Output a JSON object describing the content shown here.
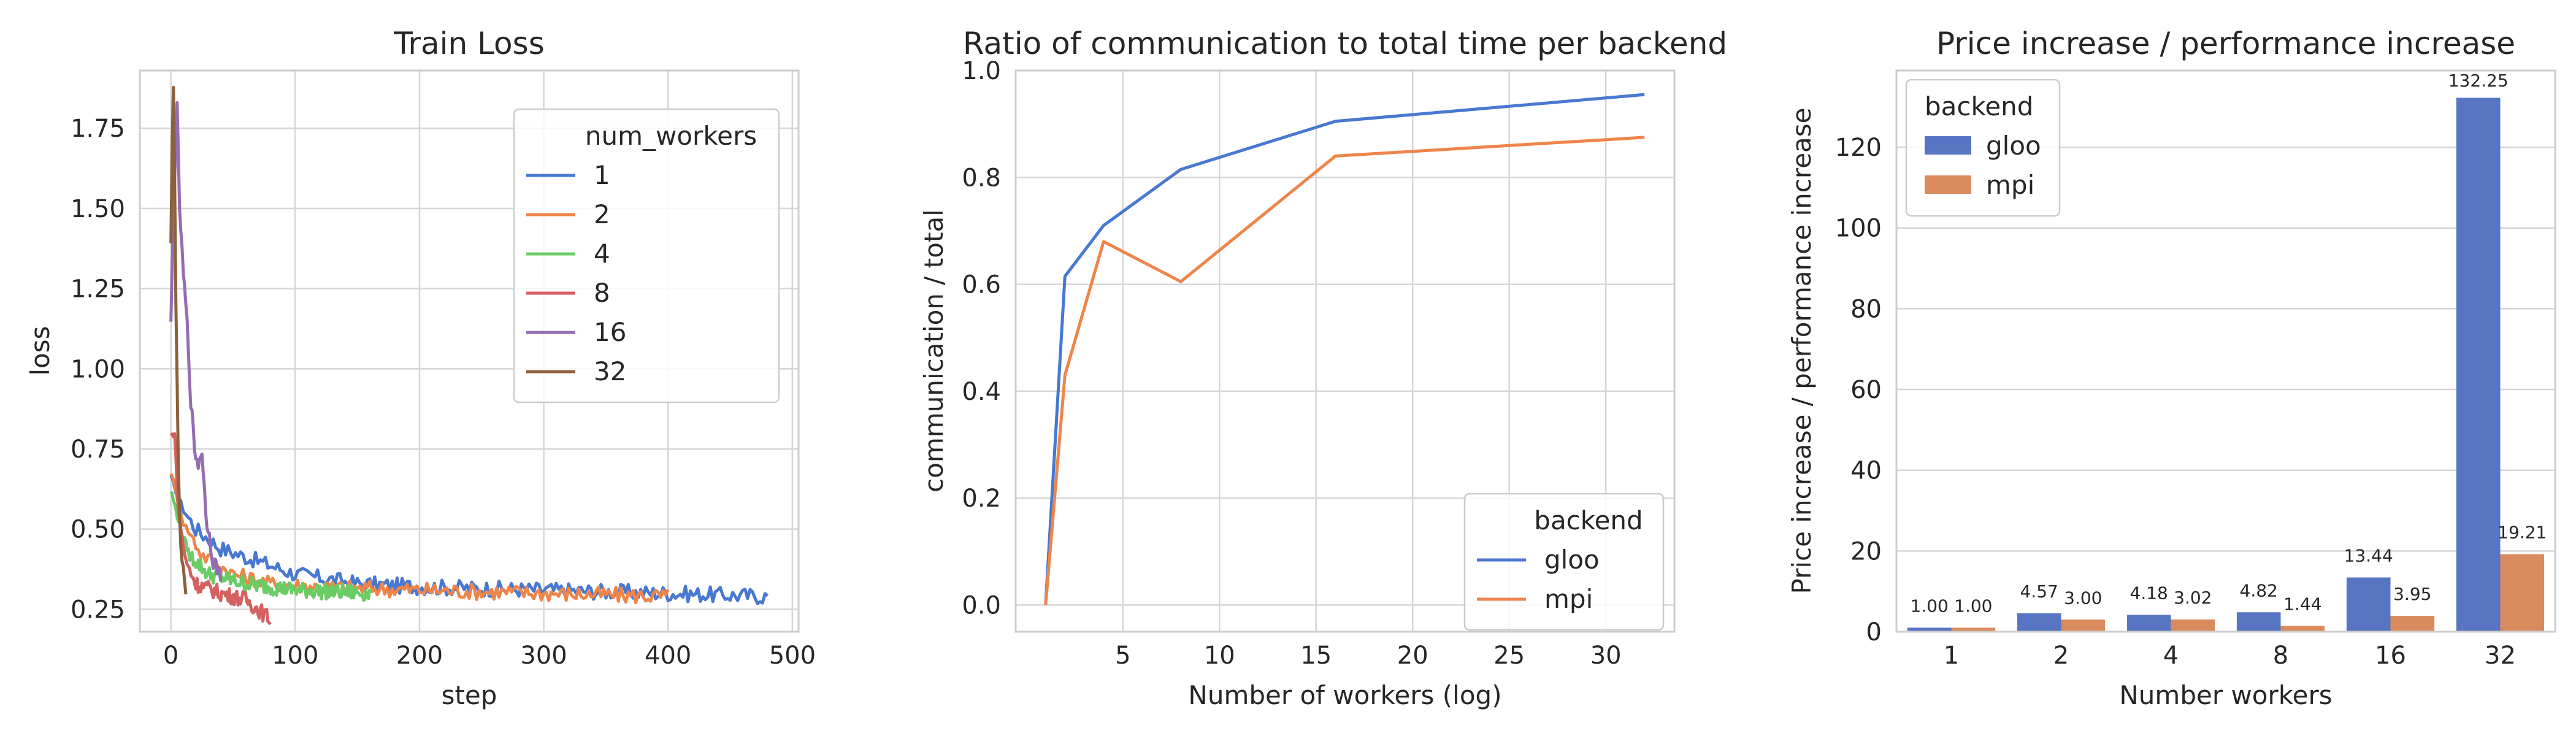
{
  "colors": {
    "blue": "#4c72b0",
    "blue_line": "#4878d0",
    "orange": "#ee854a",
    "orange_bar": "#dd8452",
    "green": "#6acc64",
    "red": "#d65f5f",
    "purple": "#956cb4",
    "brown": "#8c613c",
    "gloo_bar": "#5875c4",
    "mpi_bar": "#d98b5d"
  },
  "chart_data": [
    {
      "type": "line",
      "title": "Train Loss",
      "xlabel": "step",
      "ylabel": "loss",
      "xlim": [
        -25,
        505
      ],
      "ylim": [
        0.18,
        1.93
      ],
      "xticks": [
        0,
        100,
        200,
        300,
        400,
        500
      ],
      "yticks": [
        0.25,
        0.5,
        0.75,
        1.0,
        1.25,
        1.5,
        1.75
      ],
      "ytick_labels": [
        "0.25",
        "0.50",
        "0.75",
        "1.00",
        "1.25",
        "1.50",
        "1.75"
      ],
      "grid": true,
      "legend": {
        "title": "num_workers",
        "placement": "top-right"
      },
      "series": [
        {
          "name": "1",
          "color_key": "blue_line",
          "x": [
            0,
            480
          ],
          "anchors": [
            [
              0,
              0.66
            ],
            [
              10,
              0.56
            ],
            [
              20,
              0.5
            ],
            [
              40,
              0.44
            ],
            [
              70,
              0.4
            ],
            [
              100,
              0.36
            ],
            [
              150,
              0.33
            ],
            [
              200,
              0.32
            ],
            [
              300,
              0.31
            ],
            [
              400,
              0.3
            ],
            [
              480,
              0.29
            ]
          ]
        },
        {
          "name": "2",
          "color_key": "orange",
          "x": [
            0,
            400
          ],
          "anchors": [
            [
              0,
              0.68
            ],
            [
              10,
              0.52
            ],
            [
              25,
              0.42
            ],
            [
              50,
              0.36
            ],
            [
              80,
              0.33
            ],
            [
              120,
              0.32
            ],
            [
              200,
              0.31
            ],
            [
              300,
              0.3
            ],
            [
              400,
              0.29
            ]
          ]
        },
        {
          "name": "4",
          "color_key": "green",
          "x": [
            0,
            160
          ],
          "anchors": [
            [
              0,
              0.62
            ],
            [
              8,
              0.5
            ],
            [
              15,
              0.42
            ],
            [
              30,
              0.36
            ],
            [
              60,
              0.33
            ],
            [
              100,
              0.31
            ],
            [
              160,
              0.3
            ]
          ]
        },
        {
          "name": "8",
          "color_key": "red",
          "x": [
            0,
            80
          ],
          "anchors": [
            [
              0,
              0.79
            ],
            [
              3,
              0.8
            ],
            [
              6,
              0.55
            ],
            [
              12,
              0.4
            ],
            [
              20,
              0.33
            ],
            [
              40,
              0.3
            ],
            [
              60,
              0.28
            ],
            [
              80,
              0.22
            ]
          ]
        },
        {
          "name": "16",
          "color_key": "purple",
          "x": [
            0,
            40
          ],
          "anchors": [
            [
              0,
              1.14
            ],
            [
              1,
              1.33
            ],
            [
              3,
              1.6
            ],
            [
              5,
              1.82
            ],
            [
              7,
              1.5
            ],
            [
              10,
              1.3
            ],
            [
              13,
              1.15
            ],
            [
              16,
              0.9
            ],
            [
              19,
              0.75
            ],
            [
              22,
              0.7
            ],
            [
              25,
              0.75
            ],
            [
              28,
              0.55
            ],
            [
              31,
              0.48
            ],
            [
              34,
              0.4
            ],
            [
              37,
              0.38
            ],
            [
              40,
              0.35
            ]
          ]
        },
        {
          "name": "32",
          "color_key": "brown",
          "x": [
            0,
            12
          ],
          "anchors": [
            [
              0,
              1.4
            ],
            [
              1,
              1.7
            ],
            [
              2,
              1.88
            ],
            [
              3,
              1.6
            ],
            [
              4,
              1.2
            ],
            [
              5,
              0.95
            ],
            [
              6,
              0.7
            ],
            [
              7,
              0.55
            ],
            [
              8,
              0.45
            ],
            [
              9,
              0.4
            ],
            [
              10,
              0.38
            ],
            [
              11,
              0.34
            ],
            [
              12,
              0.3
            ]
          ]
        }
      ]
    },
    {
      "type": "line",
      "title": "Ratio of communication to total time per backend",
      "xlabel": "Number of workers (log)",
      "ylabel": "communication / total",
      "xlim": [
        -0.55,
        33.55
      ],
      "ylim": [
        -0.05,
        1.0
      ],
      "xticks": [
        5,
        10,
        15,
        20,
        25,
        30
      ],
      "yticks": [
        0.0,
        0.2,
        0.4,
        0.6,
        0.8,
        1.0
      ],
      "ytick_labels": [
        "0.0",
        "0.2",
        "0.4",
        "0.6",
        "0.8",
        "1.0"
      ],
      "grid": true,
      "legend": {
        "title": "backend",
        "placement": "bottom-right"
      },
      "series": [
        {
          "name": "gloo",
          "color_key": "blue_line",
          "x": [
            1,
            2,
            4,
            8,
            16,
            32
          ],
          "y": [
            0.0,
            0.615,
            0.71,
            0.815,
            0.905,
            0.955
          ]
        },
        {
          "name": "mpi",
          "color_key": "orange",
          "x": [
            1,
            2,
            4,
            8,
            16,
            32
          ],
          "y": [
            0.0,
            0.43,
            0.68,
            0.605,
            0.84,
            0.875
          ]
        }
      ]
    },
    {
      "type": "bar",
      "title": "Price increase / performance increase",
      "xlabel": "Number workers",
      "ylabel": "Price increase / performance increase",
      "categories": [
        "1",
        "2",
        "4",
        "8",
        "16",
        "32"
      ],
      "ylim": [
        0,
        139
      ],
      "yticks": [
        0,
        20,
        40,
        60,
        80,
        100,
        120
      ],
      "ytick_labels": [
        "0",
        "20",
        "40",
        "60",
        "80",
        "100",
        "120"
      ],
      "grid": true,
      "legend": {
        "title": "backend",
        "placement": "top-left"
      },
      "series": [
        {
          "name": "gloo",
          "color_key": "gloo_bar",
          "values": [
            1.0,
            4.57,
            4.18,
            4.82,
            13.44,
            132.25
          ],
          "labels": [
            "1.00",
            "4.57",
            "4.18",
            "4.82",
            "13.44",
            "132.25"
          ]
        },
        {
          "name": "mpi",
          "color_key": "mpi_bar",
          "values": [
            1.0,
            3.0,
            3.02,
            1.44,
            3.95,
            19.21
          ],
          "labels": [
            "1.00",
            "3.00",
            "3.02",
            "1.44",
            "3.95",
            "19.21"
          ]
        }
      ]
    }
  ]
}
